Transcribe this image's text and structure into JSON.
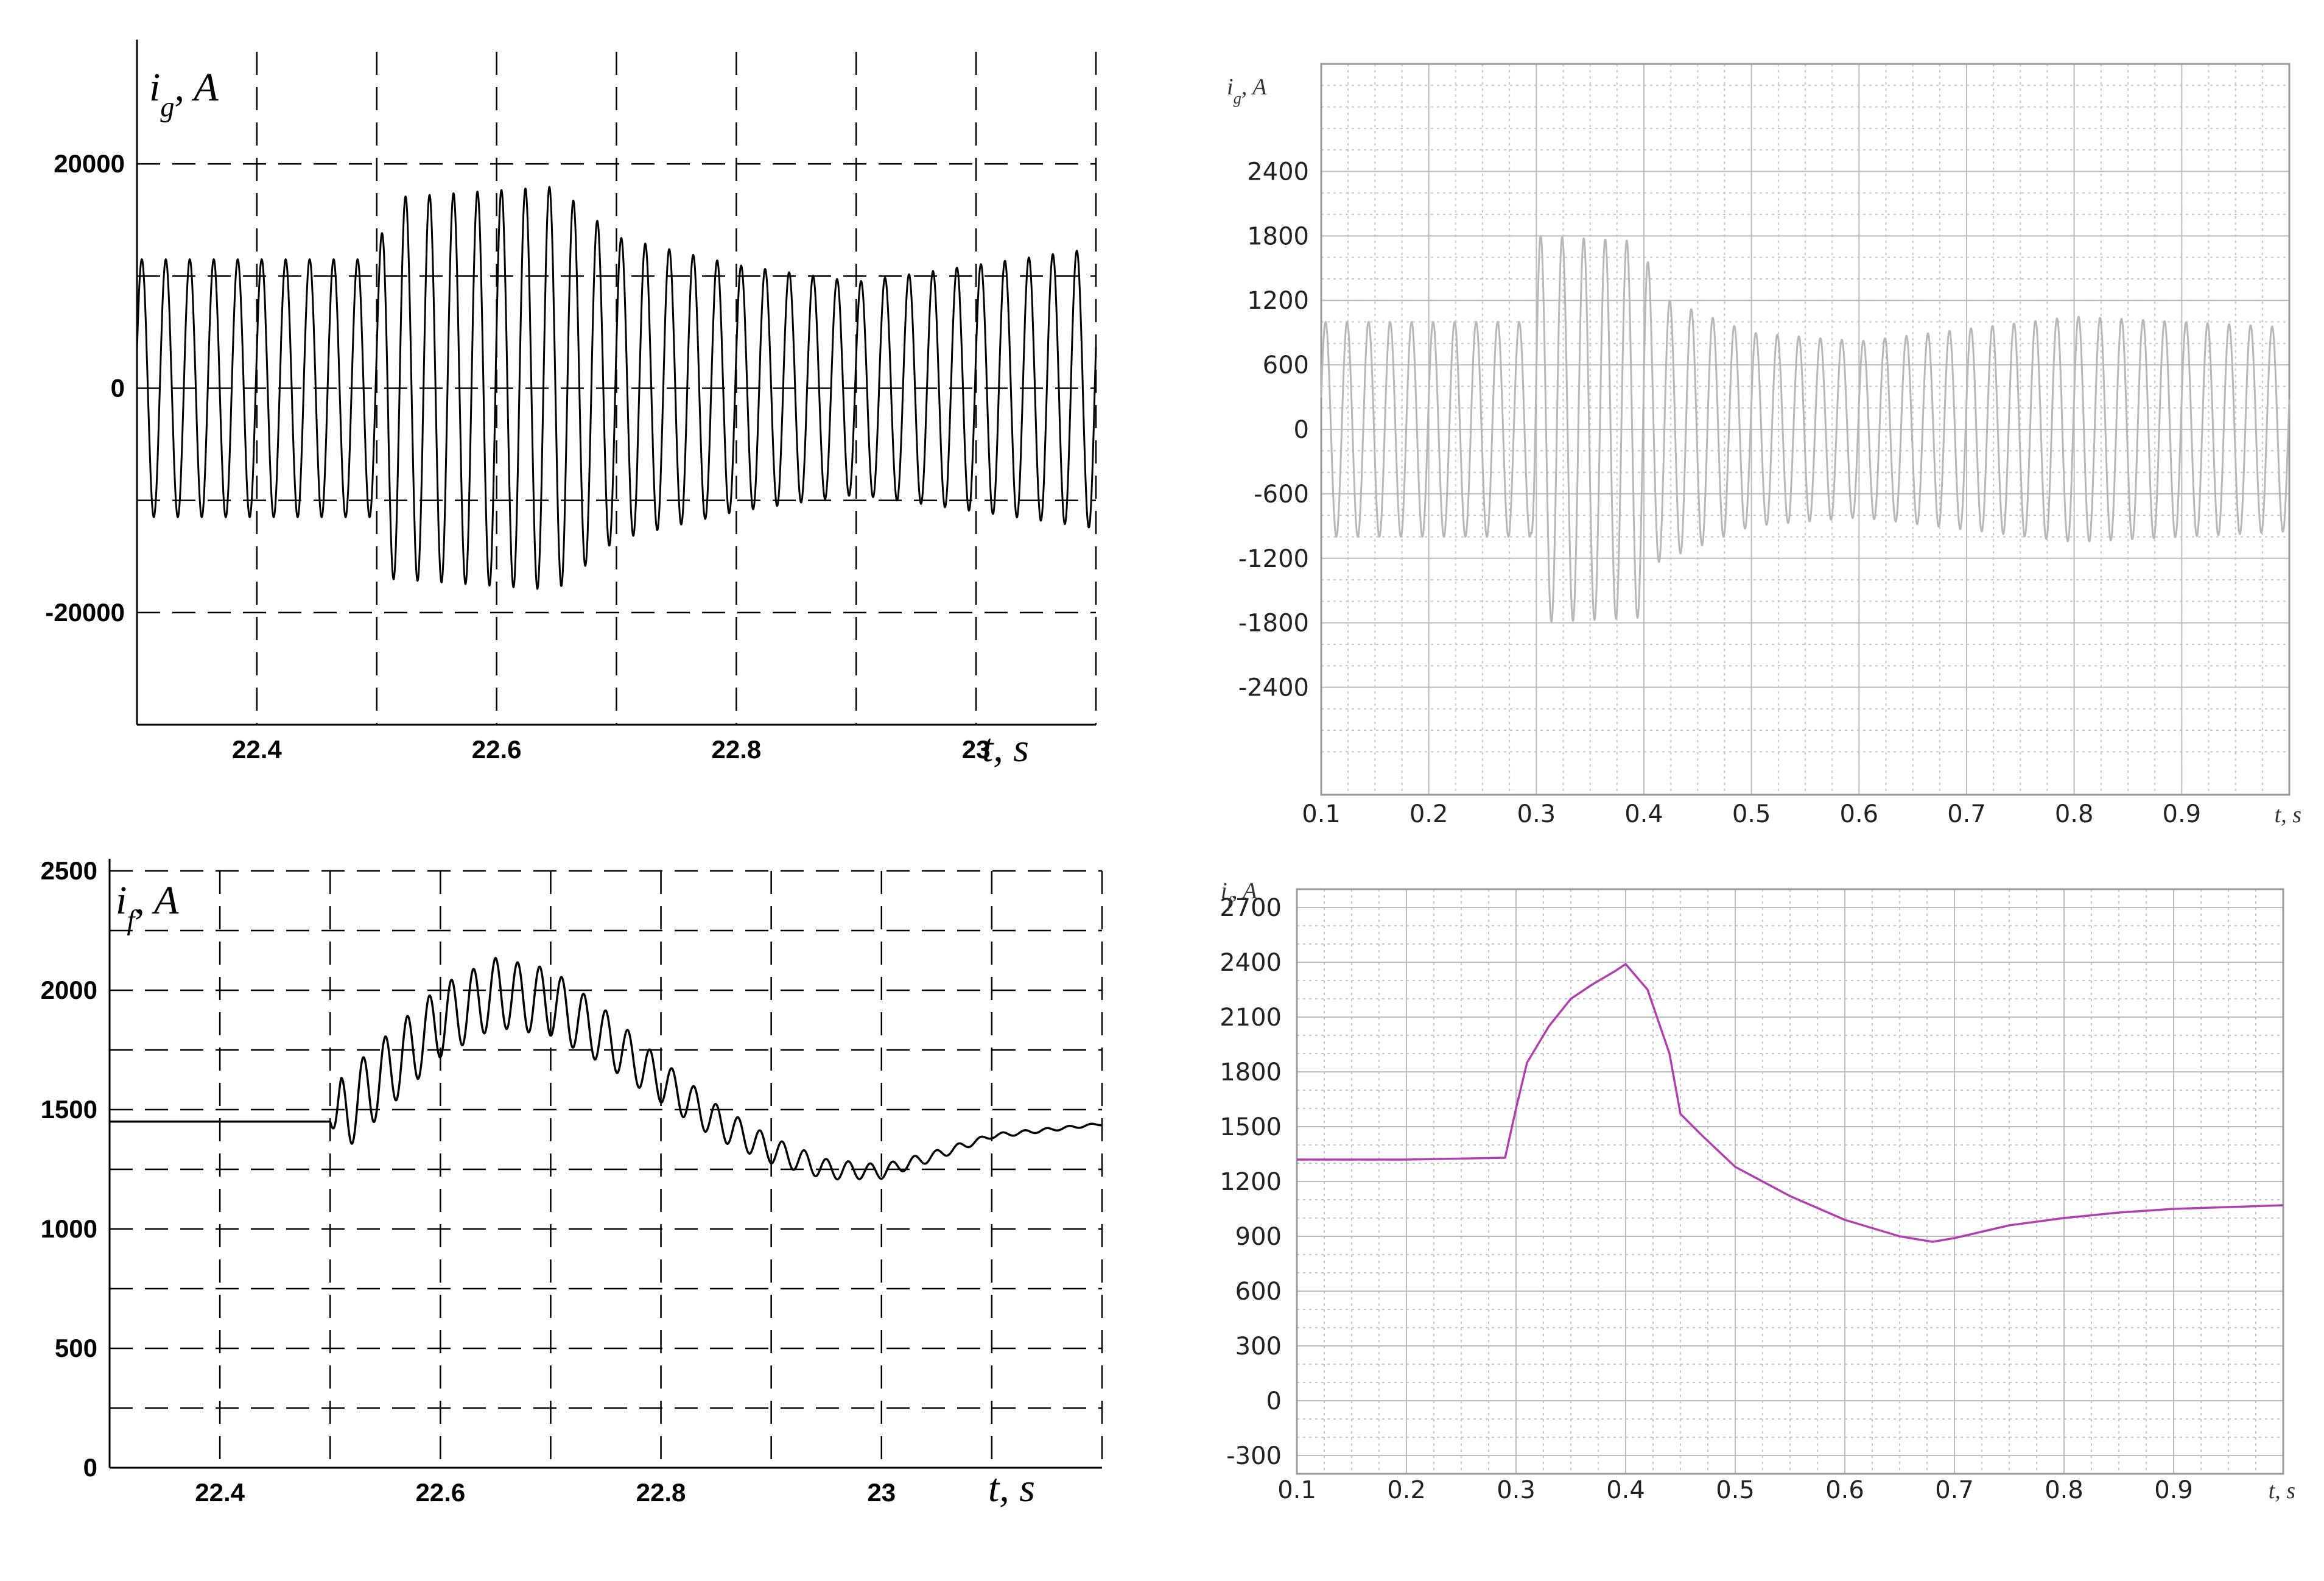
{
  "chart_data": [
    {
      "type": "line",
      "ylabel": "i",
      "ylabel_sub": "g",
      "ylabel_unit": ", A",
      "xlabel": "t, s",
      "xlim": [
        22.3,
        23.1
      ],
      "ylim": [
        -30000,
        30000
      ],
      "x_ticks": [
        22.4,
        22.6,
        22.8,
        23
      ],
      "x_tick_labels": [
        "22.4",
        "22.6",
        "22.8",
        "23"
      ],
      "y_ticks": [
        -20000,
        0,
        20000
      ],
      "y_tick_labels": [
        "-20000",
        "0",
        "20000"
      ],
      "grid": "dashed",
      "series_color": "#000000",
      "frequency_hz": 50,
      "envelope": {
        "t": [
          22.3,
          22.5,
          22.51,
          22.65,
          22.7,
          22.8,
          22.9,
          23.0,
          23.1
        ],
        "amplitude": [
          11500,
          11500,
          17000,
          18000,
          13500,
          11000,
          9500,
          11000,
          12500
        ]
      }
    },
    {
      "type": "line",
      "ylabel": "i",
      "ylabel_sub": "g",
      "ylabel_unit": ", A",
      "xlabel": "t, s",
      "xlim": [
        0.1,
        1.0
      ],
      "ylim": [
        -3400,
        3400
      ],
      "x_ticks": [
        0.1,
        0.2,
        0.3,
        0.4,
        0.5,
        0.6,
        0.7,
        0.8,
        0.9
      ],
      "x_tick_labels": [
        "0.1",
        "0.2",
        "0.3",
        "0.4",
        "0.5",
        "0.6",
        "0.7",
        "0.8",
        "0.9"
      ],
      "y_ticks": [
        -2400,
        -1800,
        -1200,
        -600,
        0,
        600,
        1200,
        1800,
        2400
      ],
      "y_tick_labels": [
        "-2400",
        "-1800",
        "-1200",
        "-600",
        "0",
        "600",
        "1200",
        "1800",
        "2400"
      ],
      "grid": "dotted",
      "series_color": "#b8b8b8",
      "frequency_hz": 50,
      "envelope": {
        "t": [
          0.1,
          0.295,
          0.3,
          0.4,
          0.41,
          0.5,
          0.6,
          0.8,
          1.0
        ],
        "amplitude": [
          1000,
          1000,
          1800,
          1750,
          1250,
          900,
          820,
          1050,
          950
        ]
      }
    },
    {
      "type": "line",
      "ylabel": "i",
      "ylabel_sub": "f",
      "ylabel_unit": ", A",
      "xlabel": "t, s",
      "xlim": [
        22.3,
        23.2
      ],
      "ylim": [
        0,
        2500
      ],
      "x_ticks": [
        22.4,
        22.6,
        22.8,
        23
      ],
      "x_tick_labels": [
        "22.4",
        "22.6",
        "22.8",
        "23"
      ],
      "y_ticks": [
        0,
        500,
        1000,
        1500,
        2000,
        2500
      ],
      "y_tick_labels": [
        "0",
        "500",
        "1000",
        "1500",
        "2000",
        "2500"
      ],
      "grid": "dashed",
      "series_color": "#000000",
      "ripple_hz": 50,
      "baseline": {
        "t": [
          22.3,
          22.505,
          22.55,
          22.6,
          22.65,
          22.7,
          22.75,
          22.8,
          22.85,
          22.9,
          22.95,
          23.0,
          23.05,
          23.1,
          23.2
        ],
        "value": [
          1450,
          1450,
          1650,
          1870,
          1990,
          1950,
          1800,
          1620,
          1450,
          1330,
          1250,
          1240,
          1310,
          1390,
          1440
        ]
      },
      "ripple": {
        "t": [
          22.3,
          22.5,
          22.51,
          22.7,
          22.8,
          22.9,
          23.0,
          23.1,
          23.2
        ],
        "amplitude": [
          0,
          0,
          160,
          140,
          90,
          55,
          30,
          10,
          5
        ]
      }
    },
    {
      "type": "line",
      "ylabel": "i",
      "ylabel_sub": "f",
      "ylabel_unit": ", A",
      "xlabel": "t, s",
      "xlim": [
        0.1,
        1.0
      ],
      "ylim": [
        -400,
        2800
      ],
      "x_ticks": [
        0.1,
        0.2,
        0.3,
        0.4,
        0.5,
        0.6,
        0.7,
        0.8,
        0.9
      ],
      "x_tick_labels": [
        "0.1",
        "0.2",
        "0.3",
        "0.4",
        "0.5",
        "0.6",
        "0.7",
        "0.8",
        "0.9"
      ],
      "y_ticks": [
        -300,
        0,
        300,
        600,
        900,
        1200,
        1500,
        1800,
        2100,
        2400,
        2700
      ],
      "y_tick_labels": [
        "-300",
        "0",
        "300",
        "600",
        "900",
        "1200",
        "1500",
        "1800",
        "2100",
        "2400",
        "2700"
      ],
      "grid": "dotted",
      "series_color": "#b040b0",
      "x": [
        0.1,
        0.2,
        0.29,
        0.3,
        0.31,
        0.33,
        0.35,
        0.37,
        0.39,
        0.4,
        0.42,
        0.44,
        0.45,
        0.47,
        0.5,
        0.55,
        0.6,
        0.65,
        0.68,
        0.7,
        0.75,
        0.8,
        0.85,
        0.9,
        0.95,
        1.0
      ],
      "y": [
        1320,
        1320,
        1330,
        1600,
        1850,
        2050,
        2200,
        2280,
        2350,
        2390,
        2250,
        1900,
        1570,
        1450,
        1280,
        1120,
        990,
        900,
        870,
        890,
        960,
        1000,
        1030,
        1050,
        1060,
        1070
      ]
    }
  ]
}
